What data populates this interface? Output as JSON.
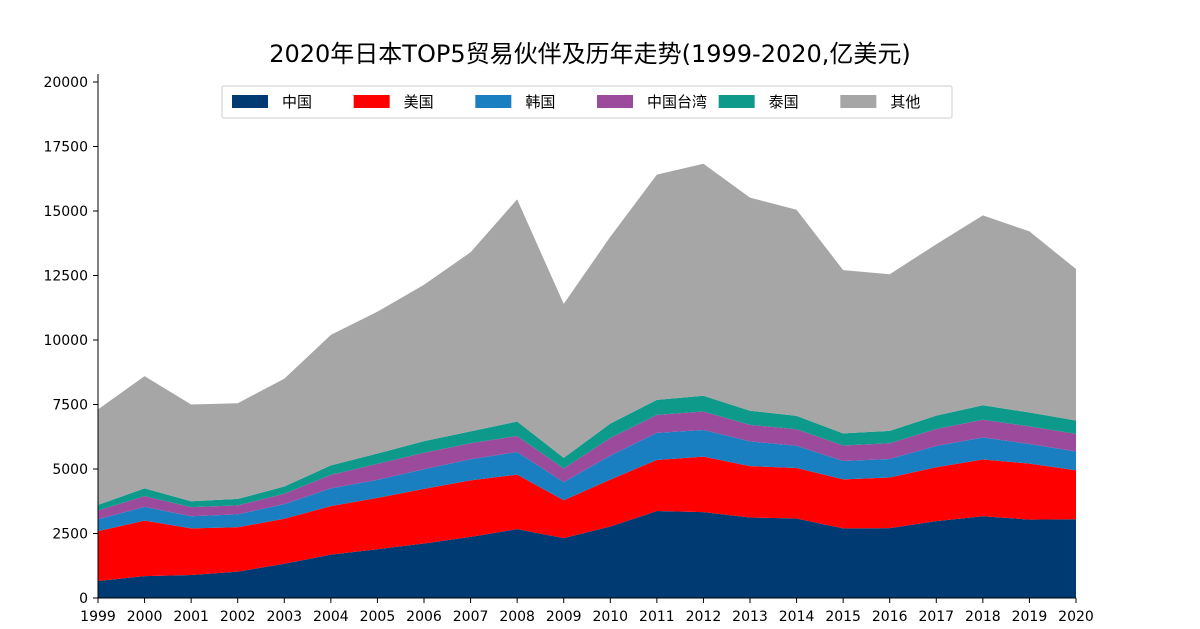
{
  "chart_data": {
    "type": "area",
    "stacked": true,
    "title": "2020年日本TOP5贸易伙伴及历年走势(1999-2020,亿美元)",
    "xlabel": "",
    "ylabel": "",
    "x": [
      "1999",
      "2000",
      "2001",
      "2002",
      "2003",
      "2004",
      "2005",
      "2006",
      "2007",
      "2008",
      "2009",
      "2010",
      "2011",
      "2012",
      "2013",
      "2014",
      "2015",
      "2016",
      "2017",
      "2018",
      "2019",
      "2020"
    ],
    "ylim": [
      0,
      20000
    ],
    "yticks": [
      0,
      2500,
      5000,
      7500,
      10000,
      12500,
      15000,
      17500,
      20000
    ],
    "grid": false,
    "legend_position": "top-center",
    "series": [
      {
        "name": "中国",
        "color": "#003a73",
        "values": [
          660,
          850,
          890,
          1020,
          1330,
          1680,
          1890,
          2110,
          2370,
          2670,
          2320,
          2770,
          3370,
          3330,
          3120,
          3080,
          2700,
          2710,
          2980,
          3170,
          3040,
          3050
        ]
      },
      {
        "name": "美国",
        "color": "#ff0000",
        "values": [
          1930,
          2150,
          1810,
          1720,
          1740,
          1880,
          1990,
          2120,
          2190,
          2110,
          1470,
          1820,
          1980,
          2150,
          1990,
          1960,
          1900,
          1960,
          2090,
          2200,
          2170,
          1900
        ]
      },
      {
        "name": "韩国",
        "color": "#1a7fc1",
        "values": [
          460,
          530,
          470,
          500,
          570,
          690,
          700,
          760,
          820,
          880,
          700,
          930,
          1050,
          1030,
          960,
          860,
          710,
          720,
          820,
          850,
          760,
          730
        ]
      },
      {
        "name": "中国台湾",
        "color": "#9b4a9c",
        "values": [
          340,
          420,
          350,
          350,
          400,
          520,
          620,
          640,
          620,
          620,
          530,
          680,
          700,
          720,
          640,
          640,
          600,
          610,
          660,
          690,
          680,
          680
        ]
      },
      {
        "name": "泰国",
        "color": "#0e9a8a",
        "values": [
          220,
          300,
          230,
          250,
          280,
          370,
          400,
          450,
          460,
          560,
          410,
          560,
          580,
          610,
          550,
          520,
          470,
          480,
          520,
          560,
          540,
          520
        ]
      },
      {
        "name": "其他",
        "color": "#a6a6a6",
        "values": [
          3700,
          4350,
          3750,
          3710,
          4180,
          5060,
          5500,
          6060,
          6940,
          8610,
          5970,
          7240,
          8730,
          8990,
          8260,
          7990,
          6330,
          6070,
          6640,
          7360,
          7020,
          5870
        ]
      }
    ]
  }
}
